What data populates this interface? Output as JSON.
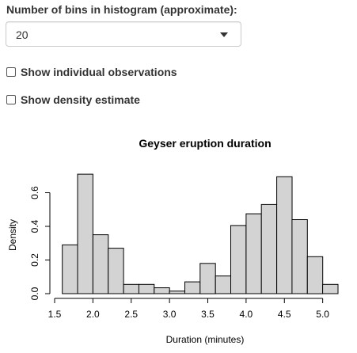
{
  "controls": {
    "bins_label": "Number of bins in histogram (approximate):",
    "bins_selected": "20",
    "show_observations_label": "Show individual observations",
    "show_observations_checked": false,
    "show_density_label": "Show density estimate",
    "show_density_checked": false
  },
  "chart_data": {
    "type": "bar",
    "title": "Geyser eruption duration",
    "xlabel": "Duration (minutes)",
    "ylabel": "Density",
    "xlim": [
      1.5,
      5.2
    ],
    "ylim": [
      0,
      0.72
    ],
    "bar_fill": "#d3d3d3",
    "bar_stroke": "#000000",
    "x_ticks": [
      {
        "value": 1.5,
        "label": "1.5"
      },
      {
        "value": 2.0,
        "label": "2.0"
      },
      {
        "value": 2.5,
        "label": "2.5"
      },
      {
        "value": 3.0,
        "label": "3.0"
      },
      {
        "value": 3.5,
        "label": "3.5"
      },
      {
        "value": 4.0,
        "label": "4.0"
      },
      {
        "value": 4.5,
        "label": "4.5"
      },
      {
        "value": 5.0,
        "label": "5.0"
      }
    ],
    "y_ticks": [
      {
        "value": 0.0,
        "label": "0.0"
      },
      {
        "value": 0.2,
        "label": "0.2"
      },
      {
        "value": 0.4,
        "label": "0.4"
      },
      {
        "value": 0.6,
        "label": "0.6"
      }
    ],
    "bins": [
      {
        "from": 1.6,
        "to": 1.8,
        "density": 0.29
      },
      {
        "from": 1.8,
        "to": 2.0,
        "density": 0.71
      },
      {
        "from": 2.0,
        "to": 2.2,
        "density": 0.35
      },
      {
        "from": 2.2,
        "to": 2.4,
        "density": 0.27
      },
      {
        "from": 2.4,
        "to": 2.6,
        "density": 0.055
      },
      {
        "from": 2.6,
        "to": 2.8,
        "density": 0.055
      },
      {
        "from": 2.8,
        "to": 3.0,
        "density": 0.035
      },
      {
        "from": 3.0,
        "to": 3.2,
        "density": 0.015
      },
      {
        "from": 3.2,
        "to": 3.4,
        "density": 0.07
      },
      {
        "from": 3.4,
        "to": 3.6,
        "density": 0.18
      },
      {
        "from": 3.6,
        "to": 3.8,
        "density": 0.105
      },
      {
        "from": 3.8,
        "to": 4.0,
        "density": 0.405
      },
      {
        "from": 4.0,
        "to": 4.2,
        "density": 0.475
      },
      {
        "from": 4.2,
        "to": 4.4,
        "density": 0.53
      },
      {
        "from": 4.4,
        "to": 4.6,
        "density": 0.695
      },
      {
        "from": 4.6,
        "to": 4.8,
        "density": 0.44
      },
      {
        "from": 4.8,
        "to": 5.0,
        "density": 0.22
      },
      {
        "from": 5.0,
        "to": 5.2,
        "density": 0.055
      }
    ]
  }
}
